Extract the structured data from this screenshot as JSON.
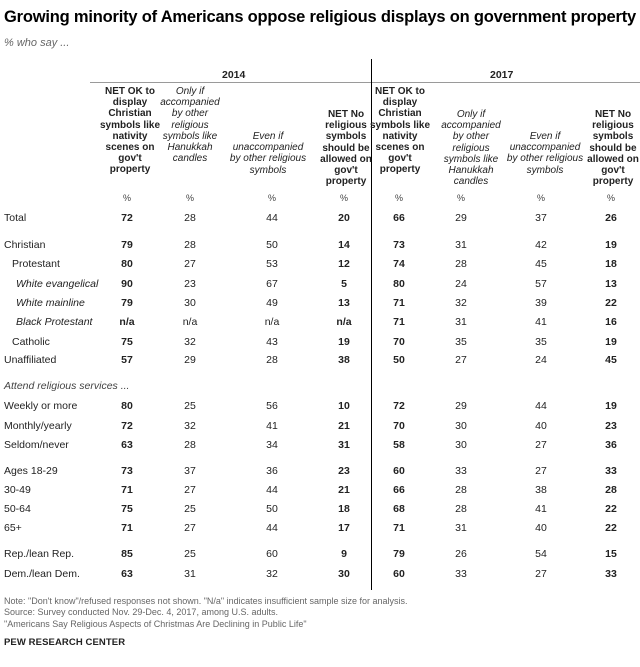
{
  "title": "Growing minority of Americans oppose religious displays on government property",
  "subtitle": "% who say ...",
  "years": [
    "2014",
    "2017"
  ],
  "column_headers": [
    "NET OK to display Christian symbols like nativity scenes on gov't property",
    "Only if accompanied by other religious symbols like Hanukkah candles",
    "Even if unaccompanied by other religious symbols",
    "NET No religious symbols should be allowed on gov't property"
  ],
  "unit_label": "%",
  "section_headers": {
    "attend": "Attend religious services ..."
  },
  "chart_data": {
    "type": "table",
    "title": "Growing minority of Americans oppose religious displays on government property",
    "subtitle": "% who say ...",
    "years": [
      "2014",
      "2017"
    ],
    "columns": [
      "NET OK to display Christian symbols like nativity scenes on gov't property",
      "Only if accompanied by other religious symbols like Hanukkah candles",
      "Even if unaccompanied by other religious symbols",
      "NET No religious symbols should be allowed on gov't property"
    ],
    "rows": [
      {
        "label": "Total",
        "v2014": [
          "72",
          "28",
          "44",
          "20"
        ],
        "v2017": [
          "66",
          "29",
          "37",
          "26"
        ]
      },
      {
        "label": "Christian",
        "v2014": [
          "79",
          "28",
          "50",
          "14"
        ],
        "v2017": [
          "73",
          "31",
          "42",
          "19"
        ]
      },
      {
        "label": "Protestant",
        "v2014": [
          "80",
          "27",
          "53",
          "12"
        ],
        "v2017": [
          "74",
          "28",
          "45",
          "18"
        ]
      },
      {
        "label": "White evangelical",
        "v2014": [
          "90",
          "23",
          "67",
          "5"
        ],
        "v2017": [
          "80",
          "24",
          "57",
          "13"
        ]
      },
      {
        "label": "White mainline",
        "v2014": [
          "79",
          "30",
          "49",
          "13"
        ],
        "v2017": [
          "71",
          "32",
          "39",
          "22"
        ]
      },
      {
        "label": "Black Protestant",
        "v2014": [
          "n/a",
          "n/a",
          "n/a",
          "n/a"
        ],
        "v2017": [
          "71",
          "31",
          "41",
          "16"
        ]
      },
      {
        "label": "Catholic",
        "v2014": [
          "75",
          "32",
          "43",
          "19"
        ],
        "v2017": [
          "70",
          "35",
          "35",
          "19"
        ]
      },
      {
        "label": "Unaffiliated",
        "v2014": [
          "57",
          "29",
          "28",
          "38"
        ],
        "v2017": [
          "50",
          "27",
          "24",
          "45"
        ]
      },
      {
        "label": "Weekly or more",
        "v2014": [
          "80",
          "25",
          "56",
          "10"
        ],
        "v2017": [
          "72",
          "29",
          "44",
          "19"
        ]
      },
      {
        "label": "Monthly/yearly",
        "v2014": [
          "72",
          "32",
          "41",
          "21"
        ],
        "v2017": [
          "70",
          "30",
          "40",
          "23"
        ]
      },
      {
        "label": "Seldom/never",
        "v2014": [
          "63",
          "28",
          "34",
          "31"
        ],
        "v2017": [
          "58",
          "30",
          "27",
          "36"
        ]
      },
      {
        "label": "Ages 18-29",
        "v2014": [
          "73",
          "37",
          "36",
          "23"
        ],
        "v2017": [
          "60",
          "33",
          "27",
          "33"
        ]
      },
      {
        "label": "30-49",
        "v2014": [
          "71",
          "27",
          "44",
          "21"
        ],
        "v2017": [
          "66",
          "28",
          "38",
          "28"
        ]
      },
      {
        "label": "50-64",
        "v2014": [
          "75",
          "25",
          "50",
          "18"
        ],
        "v2017": [
          "68",
          "28",
          "41",
          "22"
        ]
      },
      {
        "label": "65+",
        "v2014": [
          "71",
          "27",
          "44",
          "17"
        ],
        "v2017": [
          "71",
          "31",
          "40",
          "22"
        ]
      },
      {
        "label": "Rep./lean Rep.",
        "v2014": [
          "85",
          "25",
          "60",
          "9"
        ],
        "v2017": [
          "79",
          "26",
          "54",
          "15"
        ]
      },
      {
        "label": "Dem./lean Dem.",
        "v2014": [
          "63",
          "31",
          "32",
          "30"
        ],
        "v2017": [
          "60",
          "33",
          "27",
          "33"
        ]
      }
    ]
  },
  "notes": [
    "Note: \"Don't know\"/refused responses not shown. \"N/a\" indicates insufficient sample size for analysis.",
    "Source: Survey conducted Nov. 29-Dec. 4, 2017, among U.S. adults.",
    "\"Americans Say Religious Aspects of Christmas Are Declining in Public Life\""
  ],
  "brand": "PEW RESEARCH CENTER"
}
